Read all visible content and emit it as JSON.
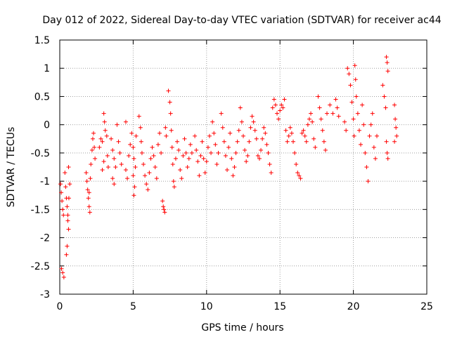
{
  "chart_data": {
    "type": "scatter",
    "title": "Day 012 of 2022, Sidereal Day-to-day VTEC variation (SDTVAR) for receiver ac44",
    "xlabel": "GPS time / hours",
    "ylabel": "SDTVAR / TECUs",
    "xlim": [
      0,
      25
    ],
    "ylim": [
      -3,
      1.5
    ],
    "x_ticks": [
      "0",
      "5",
      "10",
      "15",
      "20",
      "25"
    ],
    "y_ticks": [
      "-3",
      "-2.5",
      "-2",
      "-1.5",
      "-1",
      "-0.5",
      "0",
      "0.5",
      "1",
      "1.5"
    ],
    "x_tick_values": [
      0,
      5,
      10,
      15,
      20,
      25
    ],
    "y_tick_values": [
      -3,
      -2.5,
      -2,
      -1.5,
      -1,
      -0.5,
      0,
      0.5,
      1,
      1.5
    ],
    "grid": true,
    "marker": "+",
    "color": "#ff0000",
    "series": [
      {
        "name": "SDTVAR",
        "points": [
          [
            0.05,
            -1.05
          ],
          [
            0.1,
            -1.2
          ],
          [
            0.15,
            -1.35
          ],
          [
            0.2,
            -1.5
          ],
          [
            0.25,
            -1.6
          ],
          [
            0.12,
            -2.55
          ],
          [
            0.2,
            -2.62
          ],
          [
            0.28,
            -2.7
          ],
          [
            0.35,
            -0.85
          ],
          [
            0.4,
            -1.1
          ],
          [
            0.45,
            -1.3
          ],
          [
            0.5,
            -1.45
          ],
          [
            0.55,
            -1.7
          ],
          [
            0.6,
            -1.85
          ],
          [
            0.5,
            -2.15
          ],
          [
            0.45,
            -2.3
          ],
          [
            0.55,
            -1.6
          ],
          [
            0.62,
            -1.3
          ],
          [
            0.68,
            -1.05
          ],
          [
            0.6,
            -0.75
          ],
          [
            1.8,
            -0.85
          ],
          [
            1.85,
            -1.0
          ],
          [
            1.9,
            -1.15
          ],
          [
            1.95,
            -1.3
          ],
          [
            2.0,
            -1.45
          ],
          [
            2.05,
            -1.55
          ],
          [
            2.0,
            -1.2
          ],
          [
            2.08,
            -0.95
          ],
          [
            2.12,
            -0.7
          ],
          [
            2.2,
            -0.45
          ],
          [
            2.25,
            -0.25
          ],
          [
            2.3,
            -0.15
          ],
          [
            2.35,
            -0.4
          ],
          [
            2.4,
            -0.6
          ],
          [
            2.7,
            -0.4
          ],
          [
            2.8,
            -0.25
          ],
          [
            2.9,
            -0.3
          ],
          [
            3.0,
            0.2
          ],
          [
            3.05,
            0.05
          ],
          [
            3.1,
            -0.1
          ],
          [
            3.2,
            -0.2
          ],
          [
            3.25,
            -0.55
          ],
          [
            3.3,
            -0.75
          ],
          [
            3.0,
            -0.65
          ],
          [
            2.9,
            -0.8
          ],
          [
            3.5,
            -0.25
          ],
          [
            3.6,
            -0.45
          ],
          [
            3.7,
            -0.6
          ],
          [
            3.8,
            -0.75
          ],
          [
            3.6,
            -0.95
          ],
          [
            3.7,
            -1.05
          ],
          [
            3.9,
            0.0
          ],
          [
            4.0,
            -0.3
          ],
          [
            4.1,
            -0.5
          ],
          [
            4.2,
            -0.7
          ],
          [
            4.5,
            0.05
          ],
          [
            4.5,
            -0.8
          ],
          [
            4.6,
            -0.95
          ],
          [
            4.7,
            -0.55
          ],
          [
            4.8,
            -0.35
          ],
          [
            4.9,
            -0.15
          ],
          [
            5.0,
            -0.4
          ],
          [
            5.05,
            -0.6
          ],
          [
            5.0,
            -0.9
          ],
          [
            5.1,
            -1.1
          ],
          [
            5.05,
            -1.25
          ],
          [
            5.15,
            -0.75
          ],
          [
            5.2,
            -0.2
          ],
          [
            5.4,
            0.15
          ],
          [
            5.5,
            -0.05
          ],
          [
            5.55,
            -0.3
          ],
          [
            5.6,
            -0.5
          ],
          [
            5.7,
            -0.7
          ],
          [
            5.8,
            -0.9
          ],
          [
            5.9,
            -1.05
          ],
          [
            6.0,
            -1.15
          ],
          [
            6.1,
            -0.85
          ],
          [
            6.2,
            -0.6
          ],
          [
            6.3,
            -0.4
          ],
          [
            6.4,
            -0.55
          ],
          [
            6.5,
            -0.75
          ],
          [
            6.6,
            -0.95
          ],
          [
            6.7,
            -0.35
          ],
          [
            6.8,
            -0.15
          ],
          [
            6.9,
            -0.5
          ],
          [
            7.0,
            -1.35
          ],
          [
            7.05,
            -1.45
          ],
          [
            7.1,
            -1.5
          ],
          [
            7.15,
            -1.55
          ],
          [
            7.2,
            -0.05
          ],
          [
            7.25,
            -0.2
          ],
          [
            7.4,
            0.6
          ],
          [
            7.5,
            0.4
          ],
          [
            7.55,
            0.2
          ],
          [
            7.6,
            -0.1
          ],
          [
            7.65,
            -0.4
          ],
          [
            7.7,
            -0.7
          ],
          [
            7.75,
            -1.0
          ],
          [
            7.8,
            -1.1
          ],
          [
            7.9,
            -0.6
          ],
          [
            8.0,
            -0.3
          ],
          [
            8.1,
            -0.45
          ],
          [
            8.2,
            -0.8
          ],
          [
            8.3,
            -0.95
          ],
          [
            8.4,
            -0.55
          ],
          [
            8.5,
            -0.25
          ],
          [
            8.6,
            -0.5
          ],
          [
            8.7,
            -0.75
          ],
          [
            8.8,
            -0.6
          ],
          [
            8.9,
            -0.35
          ],
          [
            9.0,
            -0.5
          ],
          [
            9.2,
            -0.2
          ],
          [
            9.3,
            -0.45
          ],
          [
            9.4,
            -0.65
          ],
          [
            9.5,
            -0.9
          ],
          [
            9.6,
            -0.55
          ],
          [
            9.7,
            -0.3
          ],
          [
            9.8,
            -0.6
          ],
          [
            9.9,
            -0.85
          ],
          [
            10.0,
            -0.65
          ],
          [
            10.1,
            -0.4
          ],
          [
            10.2,
            -0.2
          ],
          [
            10.3,
            -0.5
          ],
          [
            10.4,
            0.05
          ],
          [
            10.5,
            -0.15
          ],
          [
            10.6,
            -0.35
          ],
          [
            10.7,
            -0.7
          ],
          [
            10.8,
            -0.5
          ],
          [
            11.0,
            0.2
          ],
          [
            11.1,
            -0.05
          ],
          [
            11.2,
            -0.3
          ],
          [
            11.3,
            -0.55
          ],
          [
            11.4,
            -0.8
          ],
          [
            11.5,
            -0.4
          ],
          [
            11.6,
            -0.15
          ],
          [
            11.7,
            -0.6
          ],
          [
            11.8,
            -0.9
          ],
          [
            11.9,
            -0.75
          ],
          [
            12.0,
            -0.5
          ],
          [
            12.1,
            -0.3
          ],
          [
            12.2,
            -0.1
          ],
          [
            12.3,
            0.3
          ],
          [
            12.4,
            0.05
          ],
          [
            12.5,
            -0.2
          ],
          [
            12.6,
            -0.45
          ],
          [
            12.7,
            -0.65
          ],
          [
            12.8,
            -0.55
          ],
          [
            12.9,
            -0.3
          ],
          [
            13.0,
            -0.05
          ],
          [
            13.1,
            0.15
          ],
          [
            13.2,
            0.05
          ],
          [
            13.3,
            -0.1
          ],
          [
            13.4,
            -0.25
          ],
          [
            13.5,
            -0.55
          ],
          [
            13.6,
            -0.6
          ],
          [
            13.7,
            -0.45
          ],
          [
            13.8,
            -0.25
          ],
          [
            13.9,
            -0.05
          ],
          [
            14.0,
            -0.15
          ],
          [
            14.1,
            -0.35
          ],
          [
            14.2,
            -0.5
          ],
          [
            14.3,
            -0.7
          ],
          [
            14.4,
            -0.85
          ],
          [
            14.5,
            0.3
          ],
          [
            14.6,
            0.45
          ],
          [
            14.7,
            0.35
          ],
          [
            14.8,
            0.2
          ],
          [
            14.9,
            0.1
          ],
          [
            15.0,
            0.25
          ],
          [
            15.1,
            0.35
          ],
          [
            15.2,
            0.3
          ],
          [
            15.3,
            0.45
          ],
          [
            15.4,
            -0.1
          ],
          [
            15.5,
            -0.3
          ],
          [
            15.6,
            -0.2
          ],
          [
            15.7,
            -0.05
          ],
          [
            15.8,
            -0.15
          ],
          [
            15.9,
            -0.3
          ],
          [
            16.0,
            -0.5
          ],
          [
            16.1,
            -0.7
          ],
          [
            16.2,
            -0.85
          ],
          [
            16.3,
            -0.9
          ],
          [
            16.4,
            -0.95
          ],
          [
            16.5,
            -0.15
          ],
          [
            16.6,
            -0.1
          ],
          [
            16.7,
            -0.2
          ],
          [
            16.8,
            -0.3
          ],
          [
            16.9,
            0.0
          ],
          [
            17.0,
            0.1
          ],
          [
            17.1,
            0.2
          ],
          [
            17.2,
            0.05
          ],
          [
            17.3,
            -0.25
          ],
          [
            17.4,
            -0.4
          ],
          [
            17.6,
            0.5
          ],
          [
            17.7,
            0.3
          ],
          [
            17.8,
            0.1
          ],
          [
            17.9,
            -0.1
          ],
          [
            18.0,
            -0.3
          ],
          [
            18.1,
            -0.45
          ],
          [
            18.2,
            0.2
          ],
          [
            18.4,
            0.35
          ],
          [
            18.6,
            0.2
          ],
          [
            18.8,
            0.45
          ],
          [
            18.9,
            0.3
          ],
          [
            19.0,
            0.15
          ],
          [
            19.4,
            0.05
          ],
          [
            19.5,
            -0.1
          ],
          [
            19.6,
            1.0
          ],
          [
            19.7,
            0.9
          ],
          [
            19.8,
            0.7
          ],
          [
            19.9,
            0.4
          ],
          [
            20.0,
            0.1
          ],
          [
            20.05,
            -0.2
          ],
          [
            20.1,
            1.05
          ],
          [
            20.15,
            0.8
          ],
          [
            20.2,
            0.5
          ],
          [
            20.3,
            0.2
          ],
          [
            20.4,
            -0.1
          ],
          [
            20.5,
            -0.35
          ],
          [
            20.6,
            0.35
          ],
          [
            20.7,
            0.0
          ],
          [
            20.8,
            -0.5
          ],
          [
            20.9,
            -0.75
          ],
          [
            21.0,
            -1.0
          ],
          [
            21.1,
            -0.2
          ],
          [
            21.2,
            0.0
          ],
          [
            21.3,
            0.2
          ],
          [
            21.4,
            -0.4
          ],
          [
            21.5,
            -0.6
          ],
          [
            21.6,
            -0.2
          ],
          [
            22.0,
            0.7
          ],
          [
            22.1,
            0.5
          ],
          [
            22.2,
            0.3
          ],
          [
            22.25,
            -0.3
          ],
          [
            22.3,
            -0.5
          ],
          [
            22.35,
            -0.6
          ],
          [
            22.25,
            1.2
          ],
          [
            22.3,
            1.1
          ],
          [
            22.35,
            0.95
          ],
          [
            22.8,
            0.35
          ],
          [
            22.85,
            0.1
          ],
          [
            22.9,
            -0.05
          ],
          [
            22.95,
            -0.2
          ],
          [
            22.8,
            -0.3
          ]
        ]
      }
    ]
  }
}
